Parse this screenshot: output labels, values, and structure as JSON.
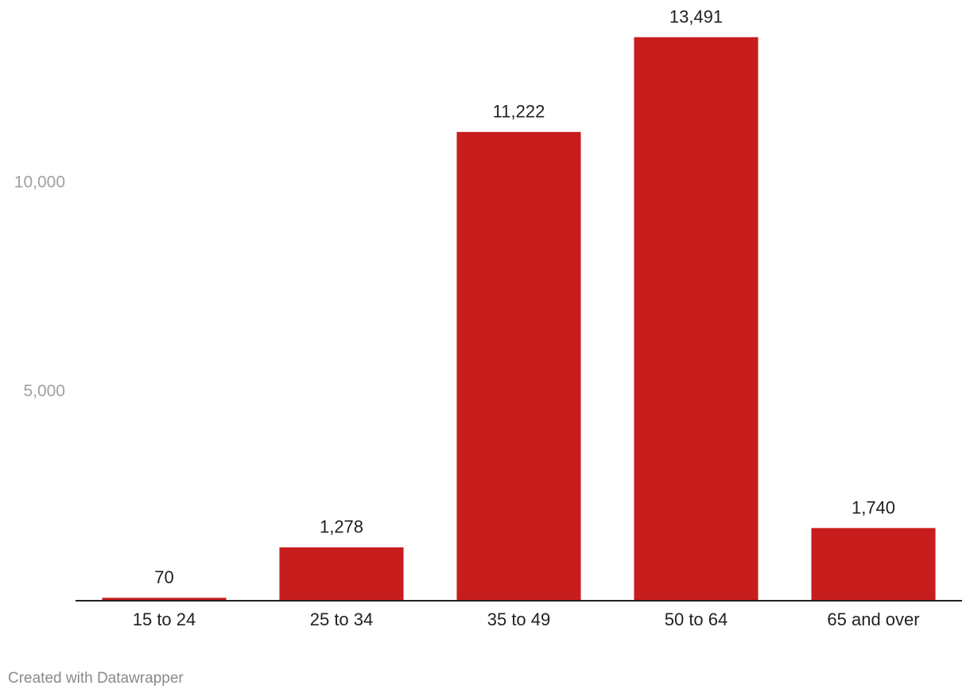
{
  "chart_data": {
    "type": "bar",
    "categories": [
      "15 to 24",
      "25 to 34",
      "35 to 49",
      "50 to 64",
      "65 and over"
    ],
    "values": [
      70,
      1278,
      11222,
      13491,
      1740
    ],
    "value_labels": [
      "70",
      "1,278",
      "11,222",
      "13,491",
      "1,740"
    ],
    "color": "#c71e1d",
    "ylim": [
      0,
      14000
    ],
    "yticks": [
      {
        "value": 5000,
        "label": "5,000"
      },
      {
        "value": 10000,
        "label": "10,000"
      }
    ],
    "grid": false,
    "credit": "Created with Datawrapper"
  }
}
